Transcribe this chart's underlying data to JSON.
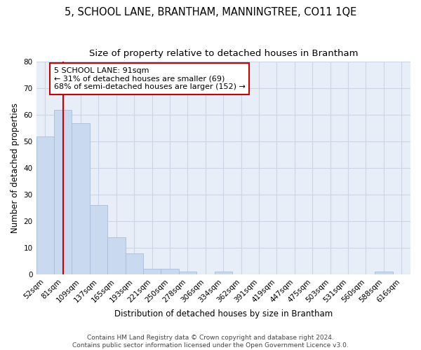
{
  "title": "5, SCHOOL LANE, BRANTHAM, MANNINGTREE, CO11 1QE",
  "subtitle": "Size of property relative to detached houses in Brantham",
  "xlabel": "Distribution of detached houses by size in Brantham",
  "ylabel": "Number of detached properties",
  "categories": [
    "52sqm",
    "81sqm",
    "109sqm",
    "137sqm",
    "165sqm",
    "193sqm",
    "221sqm",
    "250sqm",
    "278sqm",
    "306sqm",
    "334sqm",
    "362sqm",
    "391sqm",
    "419sqm",
    "447sqm",
    "475sqm",
    "503sqm",
    "531sqm",
    "560sqm",
    "588sqm",
    "616sqm"
  ],
  "values": [
    52,
    62,
    57,
    26,
    14,
    8,
    2,
    2,
    1,
    0,
    1,
    0,
    0,
    0,
    0,
    0,
    0,
    0,
    0,
    1,
    0
  ],
  "bar_color": "#c9d9f0",
  "bar_edge_color": "#a8bdd8",
  "vline_x": 1,
  "vline_color": "#cc0000",
  "annotation_text": "5 SCHOOL LANE: 91sqm\n← 31% of detached houses are smaller (69)\n68% of semi-detached houses are larger (152) →",
  "annotation_box_color": "#ffffff",
  "annotation_box_edge": "#cc0000",
  "ylim": [
    0,
    80
  ],
  "yticks": [
    0,
    10,
    20,
    30,
    40,
    50,
    60,
    70,
    80
  ],
  "grid_color": "#cdd5e5",
  "bg_color": "#e8eef8",
  "footer": "Contains HM Land Registry data © Crown copyright and database right 2024.\nContains public sector information licensed under the Open Government Licence v3.0.",
  "title_fontsize": 10.5,
  "subtitle_fontsize": 9.5,
  "xlabel_fontsize": 8.5,
  "ylabel_fontsize": 8.5,
  "tick_fontsize": 7.5,
  "annotation_fontsize": 8,
  "footer_fontsize": 6.5
}
